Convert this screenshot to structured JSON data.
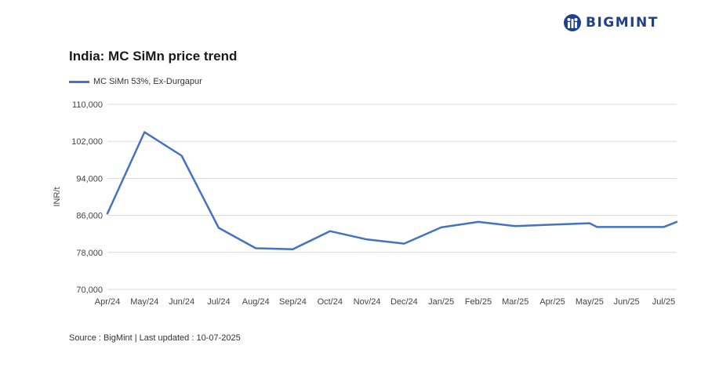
{
  "brand": {
    "name": "BIGMINT",
    "logo_icon": "bigmint-logo-icon",
    "color": "#1f3f8f"
  },
  "source_text": "Source : BigMint | Last updated : 10-07-2025",
  "chart_data": {
    "type": "line",
    "title": "India: MC SiMn price trend",
    "xlabel": "",
    "ylabel": "INR/t",
    "ylim": [
      70000,
      110000
    ],
    "yticks": [
      "70,000",
      "78,000",
      "86,000",
      "94,000",
      "102,000",
      "110,000"
    ],
    "ytick_values": [
      70000,
      78000,
      86000,
      94000,
      102000,
      110000
    ],
    "grid": true,
    "legend_position": "top-left",
    "x_labels": [
      "Apr/24",
      "May/24",
      "Jun/24",
      "Jul/24",
      "Aug/24",
      "Sep/24",
      "Oct/24",
      "Nov/24",
      "Dec/24",
      "Jan/25",
      "Feb/25",
      "Mar/25",
      "Apr/25",
      "May/25",
      "Jun/25",
      "Jul/25"
    ],
    "x_label_positions": [
      0,
      1,
      2,
      3,
      4,
      5,
      6,
      7,
      8,
      9,
      10,
      11,
      12,
      13,
      14,
      15
    ],
    "series": [
      {
        "name": "MC SiMn 53%, Ex-Durgapur",
        "color": "#4472c4",
        "x": [
          0,
          1,
          2,
          3,
          4,
          5,
          6,
          7,
          8,
          9,
          10,
          11,
          12,
          13,
          13.2,
          14,
          15,
          15.35
        ],
        "values": [
          86400,
          104000,
          98900,
          83300,
          78900,
          78700,
          82600,
          80800,
          79900,
          83400,
          84600,
          83700,
          84000,
          84300,
          83500,
          83500,
          83500,
          84600
        ]
      }
    ]
  }
}
